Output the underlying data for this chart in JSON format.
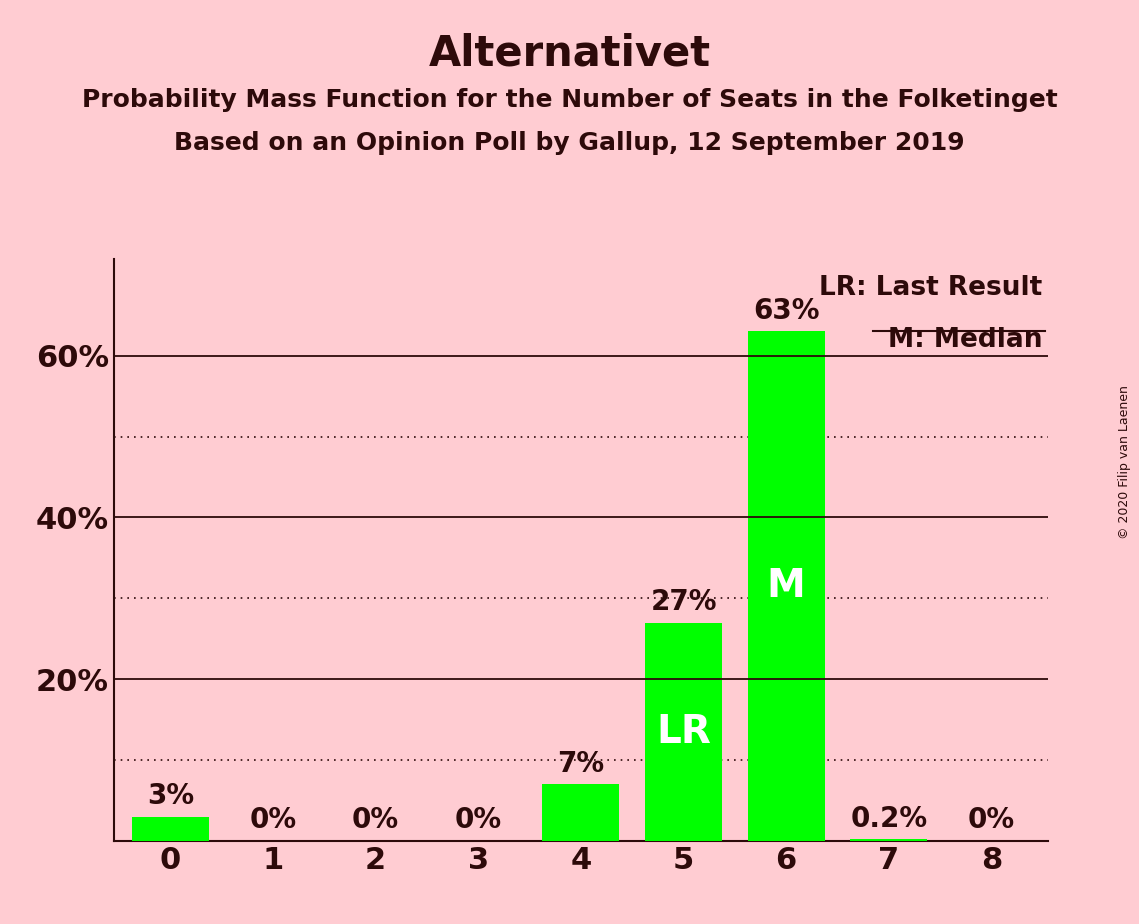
{
  "title": "Alternativet",
  "subtitle1": "Probability Mass Function for the Number of Seats in the Folketinget",
  "subtitle2": "Based on an Opinion Poll by Gallup, 12 September 2019",
  "copyright": "© 2020 Filip van Laenen",
  "categories": [
    0,
    1,
    2,
    3,
    4,
    5,
    6,
    7,
    8
  ],
  "values": [
    3,
    0,
    0,
    0,
    7,
    27,
    63,
    0.2,
    0
  ],
  "value_labels": [
    "3%",
    "0%",
    "0%",
    "0%",
    "7%",
    "27%",
    "63%",
    "0.2%",
    "0%"
  ],
  "bar_color": "#00ff00",
  "background_color": "#ffccd2",
  "text_color": "#2d0a0a",
  "lr_bar": 5,
  "median_bar": 6,
  "lr_label": "LR",
  "median_label": "M",
  "legend_lr": "LR: Last Result",
  "legend_m": "M: Median",
  "yticks": [
    20,
    40,
    60
  ],
  "ytick_labels": [
    "20%",
    "40%",
    "60%"
  ],
  "dotted_gridlines": [
    10,
    30,
    50
  ],
  "solid_gridlines": [
    20,
    40,
    60
  ],
  "ylim": [
    0,
    72
  ],
  "title_fontsize": 30,
  "subtitle_fontsize": 18,
  "tick_fontsize": 22,
  "bar_label_fontsize": 20,
  "inside_label_fontsize": 28,
  "legend_fontsize": 19,
  "copyright_fontsize": 9
}
